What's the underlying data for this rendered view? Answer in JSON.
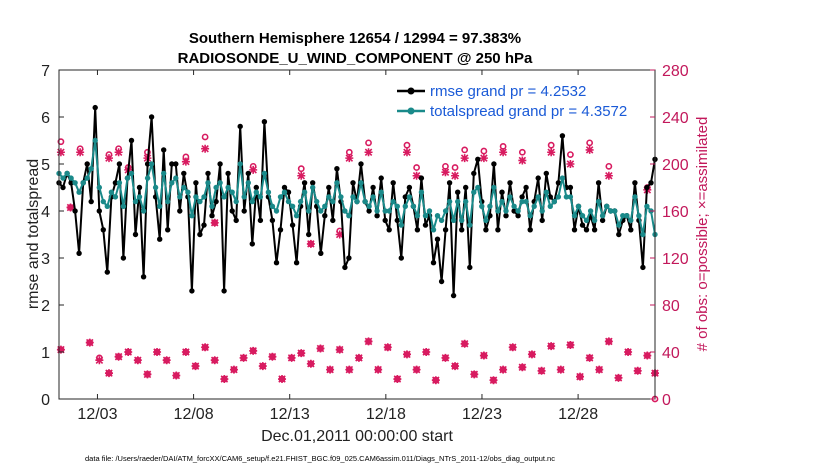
{
  "chart_data": {
    "type": "line",
    "title": "Southern Hemisphere 12654 / 12994 = 97.383%",
    "subtitle": "RADIOSONDE_U_WIND_COMPONENT @ 250 hPa",
    "xlabel": "Dec.01,2011 00:00:00 start",
    "ylabel": "rmse and totalspread",
    "y2label": "# of obs: o=possible; ×=assimilated",
    "xlim": [
      1.0,
      32.0
    ],
    "ylim": [
      0,
      7
    ],
    "y2lim": [
      0,
      280
    ],
    "xticks": [
      3,
      8,
      13,
      18,
      23,
      28
    ],
    "xtick_labels": [
      "12/03",
      "12/08",
      "12/13",
      "12/18",
      "12/23",
      "12/28"
    ],
    "yticks": [
      0,
      1,
      2,
      3,
      4,
      5,
      6,
      7
    ],
    "y2ticks": [
      0,
      40,
      80,
      120,
      160,
      200,
      240,
      280
    ],
    "legend": [
      "rmse grand pr = 4.2532",
      "totalspread grand pr = 4.3572"
    ],
    "colors": {
      "rmse": "#000000",
      "spread": "#1a8a8a",
      "obs": "#d81b60",
      "legend_text": "#1a5ad7"
    },
    "series": [
      {
        "name": "rmse",
        "values": [
          4.6,
          4.5,
          4.8,
          4.6,
          4.0,
          3.1,
          4.6,
          5.0,
          4.2,
          6.2,
          4.0,
          3.6,
          2.7,
          4.3,
          4.6,
          5.0,
          3.0,
          4.7,
          5.5,
          3.5,
          4.5,
          2.6,
          5.0,
          6.0,
          4.3,
          3.4,
          5.3,
          3.6,
          5.0,
          5.0,
          4.0,
          4.8,
          4.3,
          2.3,
          4.6,
          3.5,
          3.7,
          4.8,
          3.9,
          4.2,
          5.0,
          2.3,
          4.8,
          4.0,
          3.8,
          5.8,
          4.0,
          4.8,
          3.3,
          4.5,
          3.8,
          5.9,
          4.3,
          3.8,
          2.9,
          3.6,
          4.5,
          4.4,
          3.7,
          2.9,
          4.1,
          4.6,
          3.5,
          4.6,
          4.1,
          3.1,
          3.9,
          4.5,
          3.8,
          4.9,
          4.2,
          2.8,
          3.0,
          4.6,
          4.2,
          5.0,
          4.2,
          4.0,
          4.5,
          3.9,
          4.7,
          3.8,
          3.6,
          4.6,
          3.8,
          3.0,
          4.3,
          4.5,
          4.1,
          3.6,
          4.7,
          3.7,
          3.9,
          2.9,
          3.4,
          2.5,
          3.6,
          4.6,
          2.2,
          4.4,
          3.6,
          4.5,
          2.8,
          4.8,
          5.1,
          4.2,
          3.6,
          3.9,
          5.0,
          3.6,
          4.4,
          3.9,
          4.6,
          4.0,
          3.9,
          4.3,
          4.5,
          3.6,
          4.2,
          4.7,
          3.8,
          4.8,
          4.3,
          4.2,
          4.6,
          5.6,
          4.5,
          4.5,
          3.6,
          4.1,
          3.7,
          3.6,
          3.9,
          3.6,
          4.6,
          3.8,
          4.1,
          4.0,
          4.0,
          3.5,
          3.8,
          3.9,
          3.6,
          4.6,
          3.8,
          2.8,
          4.5,
          4.6,
          5.1
        ]
      },
      {
        "name": "totalspread",
        "values": [
          4.8,
          4.7,
          4.8,
          4.7,
          4.6,
          4.4,
          4.6,
          4.7,
          4.9,
          5.5,
          4.5,
          4.2,
          4.1,
          4.4,
          4.3,
          4.6,
          4.1,
          4.7,
          4.8,
          4.2,
          4.3,
          4.0,
          4.7,
          5.0,
          4.5,
          4.1,
          4.8,
          4.2,
          4.6,
          4.7,
          4.3,
          4.5,
          4.4,
          3.9,
          4.3,
          4.2,
          4.3,
          4.6,
          4.1,
          4.5,
          4.6,
          4.3,
          4.5,
          4.4,
          4.2,
          5.0,
          4.3,
          4.6,
          4.2,
          4.4,
          4.3,
          4.8,
          4.4,
          4.1,
          4.0,
          4.3,
          4.4,
          4.2,
          4.1,
          3.9,
          4.2,
          4.4,
          4.0,
          4.5,
          4.2,
          4.0,
          4.1,
          4.3,
          4.2,
          4.6,
          4.3,
          4.0,
          3.9,
          4.3,
          4.2,
          4.6,
          4.2,
          4.1,
          4.3,
          4.0,
          4.4,
          4.0,
          4.0,
          4.2,
          4.1,
          3.7,
          4.1,
          4.3,
          4.1,
          3.9,
          4.4,
          3.9,
          4.0,
          3.6,
          3.9,
          3.8,
          4.0,
          4.2,
          3.8,
          4.2,
          3.8,
          4.2,
          3.7,
          4.4,
          4.5,
          4.1,
          3.8,
          4.1,
          4.5,
          4.0,
          4.2,
          4.0,
          4.3,
          4.1,
          4.0,
          4.2,
          4.2,
          3.9,
          4.1,
          4.3,
          4.0,
          4.4,
          4.1,
          4.2,
          4.3,
          4.7,
          4.3,
          4.3,
          3.9,
          4.1,
          3.9,
          3.8,
          4.0,
          3.8,
          4.2,
          3.9,
          4.1,
          4.0,
          4.0,
          3.7,
          3.9,
          3.9,
          3.8,
          4.3,
          3.9,
          3.5,
          4.1,
          4.0,
          3.5
        ]
      },
      {
        "name": "obs_possible",
        "points": [
          [
            1.1,
            219
          ],
          [
            1.1,
            42
          ],
          [
            1.6,
            163
          ],
          [
            2.1,
            213
          ],
          [
            2.6,
            48
          ],
          [
            3.1,
            35
          ],
          [
            3.6,
            208
          ],
          [
            3.6,
            22
          ],
          [
            4.1,
            213
          ],
          [
            4.1,
            36
          ],
          [
            4.6,
            197
          ],
          [
            4.6,
            40
          ],
          [
            5.1,
            33
          ],
          [
            5.6,
            210
          ],
          [
            5.6,
            21
          ],
          [
            6.1,
            40
          ],
          [
            6.6,
            33
          ],
          [
            7.1,
            20
          ],
          [
            7.6,
            206
          ],
          [
            7.6,
            40
          ],
          [
            8.1,
            28
          ],
          [
            8.6,
            223
          ],
          [
            8.6,
            44
          ],
          [
            9.1,
            150
          ],
          [
            9.1,
            33
          ],
          [
            9.6,
            17
          ],
          [
            10.1,
            25
          ],
          [
            10.6,
            35
          ],
          [
            11.1,
            198
          ],
          [
            11.1,
            41
          ],
          [
            11.6,
            28
          ],
          [
            12.1,
            36
          ],
          [
            12.6,
            17
          ],
          [
            13.1,
            35
          ],
          [
            13.6,
            196
          ],
          [
            13.6,
            39
          ],
          [
            14.1,
            132
          ],
          [
            14.1,
            30
          ],
          [
            14.6,
            43
          ],
          [
            15.1,
            25
          ],
          [
            15.6,
            143
          ],
          [
            15.6,
            42
          ],
          [
            16.1,
            210
          ],
          [
            16.1,
            25
          ],
          [
            16.6,
            35
          ],
          [
            17.1,
            218
          ],
          [
            17.1,
            49
          ],
          [
            17.6,
            25
          ],
          [
            18.1,
            44
          ],
          [
            18.6,
            17
          ],
          [
            19.1,
            216
          ],
          [
            19.1,
            38
          ],
          [
            19.6,
            197
          ],
          [
            19.6,
            25
          ],
          [
            20.1,
            40
          ],
          [
            20.6,
            16
          ],
          [
            21.1,
            198
          ],
          [
            21.1,
            35
          ],
          [
            21.6,
            197
          ],
          [
            21.6,
            28
          ],
          [
            22.1,
            212
          ],
          [
            22.1,
            47
          ],
          [
            22.6,
            21
          ],
          [
            23.1,
            211
          ],
          [
            23.1,
            37
          ],
          [
            23.6,
            16
          ],
          [
            24.1,
            215
          ],
          [
            24.1,
            25
          ],
          [
            24.6,
            44
          ],
          [
            25.1,
            210
          ],
          [
            25.1,
            27
          ],
          [
            25.6,
            38
          ],
          [
            26.1,
            24
          ],
          [
            26.6,
            216
          ],
          [
            26.6,
            45
          ],
          [
            27.1,
            25
          ],
          [
            27.6,
            208
          ],
          [
            27.6,
            46
          ],
          [
            28.1,
            19
          ],
          [
            28.6,
            218
          ],
          [
            28.6,
            35
          ],
          [
            29.1,
            25
          ],
          [
            29.6,
            198
          ],
          [
            29.6,
            49
          ],
          [
            30.1,
            18
          ],
          [
            30.6,
            40
          ],
          [
            31.1,
            24
          ],
          [
            31.6,
            180
          ],
          [
            31.6,
            37
          ],
          [
            32.0,
            22
          ],
          [
            32.0,
            0
          ]
        ]
      },
      {
        "name": "obs_assimilated",
        "points": [
          [
            1.1,
            210
          ],
          [
            1.1,
            42
          ],
          [
            1.6,
            163
          ],
          [
            2.1,
            210
          ],
          [
            2.6,
            48
          ],
          [
            3.1,
            33
          ],
          [
            3.6,
            205
          ],
          [
            3.6,
            22
          ],
          [
            4.1,
            210
          ],
          [
            4.1,
            36
          ],
          [
            4.6,
            195
          ],
          [
            4.6,
            40
          ],
          [
            5.1,
            33
          ],
          [
            5.6,
            205
          ],
          [
            5.6,
            21
          ],
          [
            6.1,
            40
          ],
          [
            6.6,
            33
          ],
          [
            7.1,
            20
          ],
          [
            7.6,
            202
          ],
          [
            7.6,
            40
          ],
          [
            8.1,
            28
          ],
          [
            8.6,
            213
          ],
          [
            8.6,
            44
          ],
          [
            9.1,
            150
          ],
          [
            9.1,
            33
          ],
          [
            9.6,
            17
          ],
          [
            10.1,
            25
          ],
          [
            10.6,
            35
          ],
          [
            11.1,
            195
          ],
          [
            11.1,
            41
          ],
          [
            11.6,
            28
          ],
          [
            12.1,
            36
          ],
          [
            12.6,
            17
          ],
          [
            13.1,
            35
          ],
          [
            13.6,
            190
          ],
          [
            13.6,
            39
          ],
          [
            14.1,
            132
          ],
          [
            14.1,
            30
          ],
          [
            14.6,
            43
          ],
          [
            15.1,
            25
          ],
          [
            15.6,
            140
          ],
          [
            15.6,
            42
          ],
          [
            16.1,
            205
          ],
          [
            16.1,
            25
          ],
          [
            16.6,
            35
          ],
          [
            17.1,
            210
          ],
          [
            17.1,
            49
          ],
          [
            17.6,
            25
          ],
          [
            18.1,
            44
          ],
          [
            18.6,
            17
          ],
          [
            19.1,
            210
          ],
          [
            19.1,
            38
          ],
          [
            19.6,
            190
          ],
          [
            19.6,
            25
          ],
          [
            20.1,
            40
          ],
          [
            20.6,
            16
          ],
          [
            21.1,
            193
          ],
          [
            21.1,
            35
          ],
          [
            21.6,
            190
          ],
          [
            21.6,
            28
          ],
          [
            22.1,
            205
          ],
          [
            22.1,
            47
          ],
          [
            22.6,
            21
          ],
          [
            23.1,
            205
          ],
          [
            23.1,
            37
          ],
          [
            23.6,
            16
          ],
          [
            24.1,
            210
          ],
          [
            24.1,
            25
          ],
          [
            24.6,
            44
          ],
          [
            25.1,
            203
          ],
          [
            25.1,
            27
          ],
          [
            25.6,
            38
          ],
          [
            26.1,
            24
          ],
          [
            26.6,
            210
          ],
          [
            26.6,
            45
          ],
          [
            27.1,
            25
          ],
          [
            27.6,
            200
          ],
          [
            27.6,
            46
          ],
          [
            28.1,
            19
          ],
          [
            28.6,
            212
          ],
          [
            28.6,
            35
          ],
          [
            29.1,
            25
          ],
          [
            29.6,
            190
          ],
          [
            29.6,
            49
          ],
          [
            30.1,
            18
          ],
          [
            30.6,
            40
          ],
          [
            31.1,
            24
          ],
          [
            31.6,
            178
          ],
          [
            31.6,
            37
          ],
          [
            32.0,
            22
          ]
        ]
      }
    ]
  },
  "footer": "data file: /Users/raeder/DAI/ATM_forcXX/CAM6_setup/f.e21.FHIST_BGC.f09_025.CAM6assim.011/Diags_NTrS_2011-12/obs_diag_output.nc"
}
